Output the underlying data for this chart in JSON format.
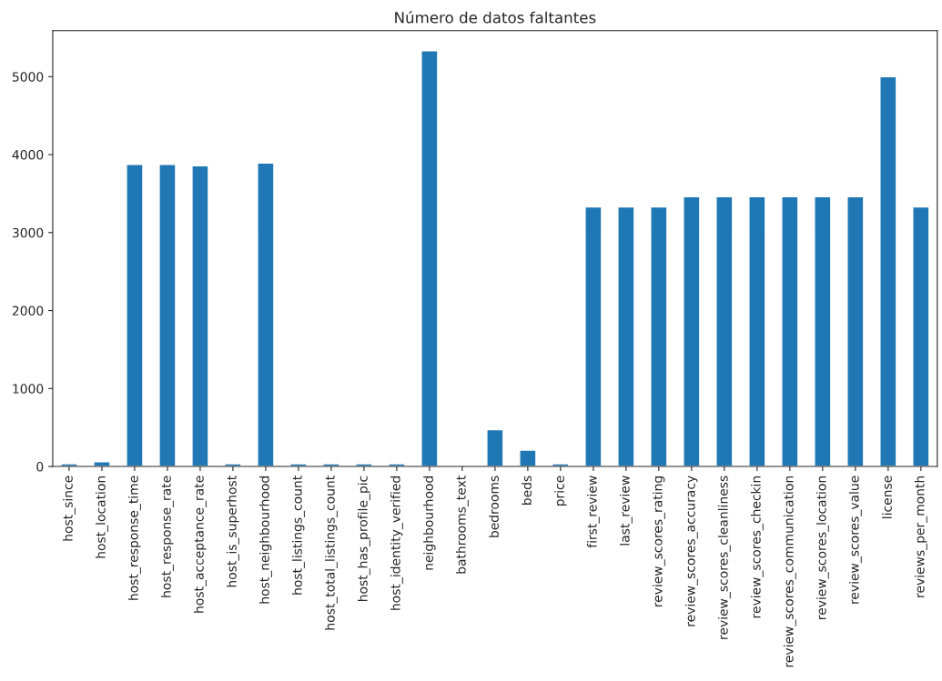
{
  "chart_data": {
    "type": "bar",
    "title": "Número de datos faltantes",
    "categories": [
      "host_since",
      "host_location",
      "host_response_time",
      "host_response_rate",
      "host_acceptance_rate",
      "host_is_superhost",
      "host_neighbourhood",
      "host_listings_count",
      "host_total_listings_count",
      "host_has_profile_pic",
      "host_identity_verified",
      "neighbourhood",
      "bathrooms_text",
      "bedrooms",
      "beds",
      "price",
      "first_review",
      "last_review",
      "review_scores_rating",
      "review_scores_accuracy",
      "review_scores_cleanliness",
      "review_scores_checkin",
      "review_scores_communication",
      "review_scores_location",
      "review_scores_value",
      "license",
      "reviews_per_month"
    ],
    "values": [
      35,
      60,
      3875,
      3875,
      3856,
      35,
      3892,
      35,
      35,
      35,
      35,
      5333,
      15,
      471,
      210,
      35,
      3330,
      3330,
      3330,
      3460,
      3460,
      3460,
      3460,
      3460,
      3460,
      5000,
      3330
    ],
    "color": "#1f77b4",
    "ylim": [
      0,
      5590
    ],
    "yticks": [
      0,
      1000,
      2000,
      3000,
      4000,
      5000
    ],
    "grid": false
  }
}
